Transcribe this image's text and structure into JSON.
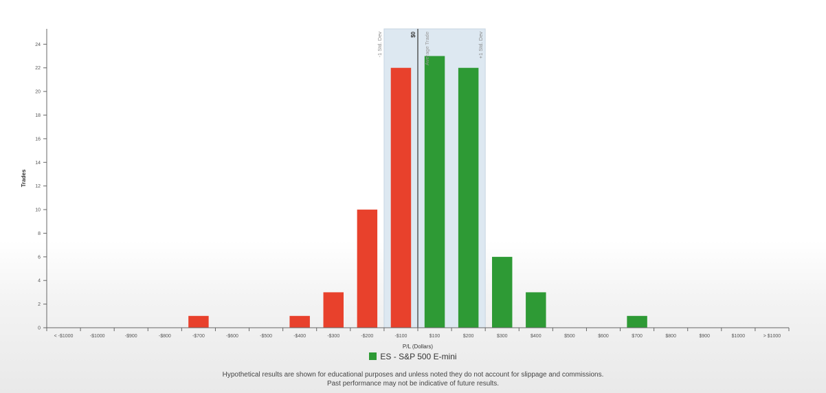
{
  "chart_data": {
    "type": "bar",
    "title": "",
    "xlabel": "P/L (Dollars)",
    "ylabel": "Trades",
    "ylim": [
      0,
      25
    ],
    "yticks": [
      0,
      2,
      4,
      6,
      8,
      10,
      12,
      14,
      16,
      18,
      20,
      22,
      24
    ],
    "grid": false,
    "legend_position": "bottom",
    "categories": [
      "< -$1000",
      "-$1000",
      "-$900",
      "-$800",
      "-$700",
      "-$600",
      "-$500",
      "-$400",
      "-$300",
      "-$200",
      "-$100",
      "$100",
      "$200",
      "$300",
      "$400",
      "$500",
      "$600",
      "$700",
      "$800",
      "$900",
      "$1000",
      "> $1000"
    ],
    "series": [
      {
        "name": "ES - S&P 500 E-mini",
        "values": [
          0,
          0,
          0,
          0,
          1,
          0,
          0,
          1,
          3,
          10,
          22,
          23,
          22,
          6,
          3,
          0,
          0,
          1,
          0,
          0,
          0,
          0
        ]
      }
    ],
    "loss_color": "#e8412c",
    "profit_color": "#2e9a35",
    "std_dev_band": {
      "from_category": "-$100",
      "to_category": "$200",
      "color": "#dde8f1",
      "left_label": "-1 Std. Dev",
      "right_label": "+1 Std. Dev"
    },
    "zero_line": {
      "label": "$0",
      "value": 0
    },
    "average_trade": {
      "label": "Average Trade"
    }
  },
  "legend": {
    "label": "ES - S&P 500 E-mini",
    "color": "#2e9a35"
  },
  "footnote": {
    "line1": "Hypothetical results are shown for educational purposes and unless noted they do not account for slippage and commissions.",
    "line2": "Past performance may not be indicative of future results."
  }
}
